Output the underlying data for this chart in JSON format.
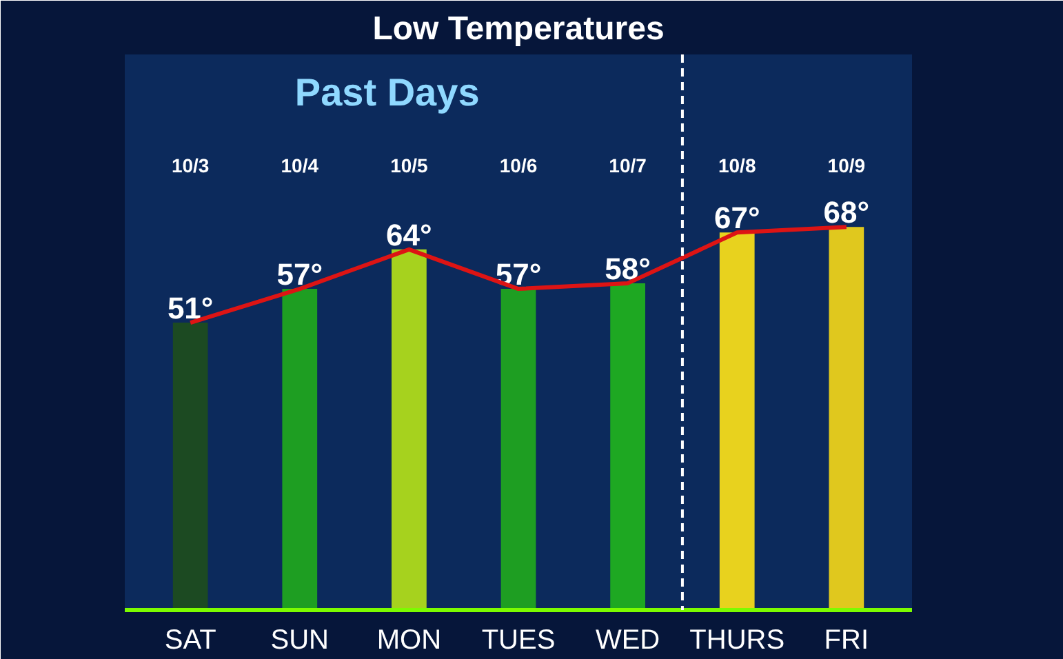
{
  "chart_data": {
    "type": "bar",
    "title": "Low Temperatures",
    "subtitle": "Past Days",
    "categories": [
      "SAT",
      "SUN",
      "MON",
      "TUES",
      "WED",
      "THURS",
      "FRI"
    ],
    "series": [
      {
        "values": [
          51,
          57,
          64,
          57,
          58,
          67,
          68
        ],
        "colors": [
          "#1c4a22",
          "#1e9e22",
          "#a6d21e",
          "#1e9e22",
          "#1ea822",
          "#e8d21e",
          "#e0c81e"
        ],
        "value_labels": [
          "51°",
          "57°",
          "64°",
          "57°",
          "58°",
          "67°",
          "68°"
        ]
      },
      {
        "type": "line",
        "color": "#dd1414",
        "values": [
          51,
          57,
          64,
          57,
          58,
          67,
          68
        ]
      }
    ],
    "annotations": [
      "10/3",
      "10/4",
      "10/5",
      "10/6",
      "10/7",
      "10/8",
      "10/9"
    ],
    "grid": false,
    "tick_labels": "x"
  }
}
